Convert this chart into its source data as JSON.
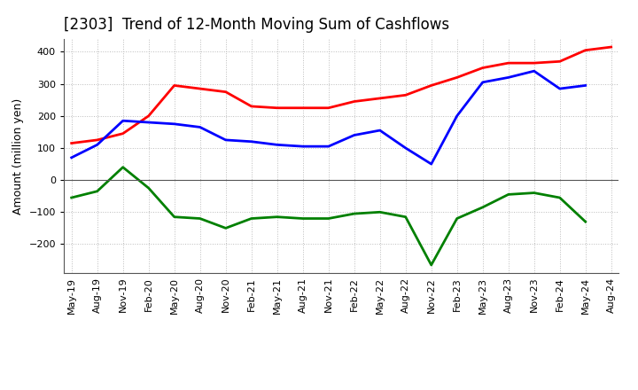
{
  "title": "[2303]  Trend of 12-Month Moving Sum of Cashflows",
  "ylabel": "Amount (million yen)",
  "x_labels": [
    "May-19",
    "Aug-19",
    "Nov-19",
    "Feb-20",
    "May-20",
    "Aug-20",
    "Nov-20",
    "Feb-21",
    "May-21",
    "Aug-21",
    "Nov-21",
    "Feb-22",
    "May-22",
    "Aug-22",
    "Nov-22",
    "Feb-23",
    "May-23",
    "Aug-23",
    "Nov-23",
    "Feb-24",
    "May-24",
    "Aug-24"
  ],
  "operating": [
    115,
    125,
    145,
    200,
    295,
    285,
    275,
    230,
    225,
    225,
    225,
    245,
    255,
    265,
    295,
    320,
    350,
    365,
    365,
    370,
    405,
    415
  ],
  "investing": [
    -55,
    -35,
    40,
    -25,
    -115,
    -120,
    -150,
    -120,
    -115,
    -120,
    -120,
    -105,
    -100,
    -115,
    -265,
    -120,
    -85,
    -45,
    -40,
    -55,
    -130,
    null
  ],
  "free": [
    70,
    110,
    185,
    180,
    175,
    165,
    125,
    120,
    110,
    105,
    105,
    140,
    155,
    100,
    50,
    200,
    305,
    320,
    340,
    285,
    295,
    null
  ],
  "ylim": [
    -290,
    440
  ],
  "yticks": [
    -200,
    -100,
    0,
    100,
    200,
    300,
    400
  ],
  "operating_color": "#ff0000",
  "investing_color": "#008000",
  "free_color": "#0000ff",
  "bg_color": "#ffffff",
  "grid_color": "#bbbbbb",
  "linewidth": 2.0,
  "title_fontsize": 12,
  "axis_fontsize": 9,
  "tick_fontsize": 8,
  "legend_fontsize": 9
}
